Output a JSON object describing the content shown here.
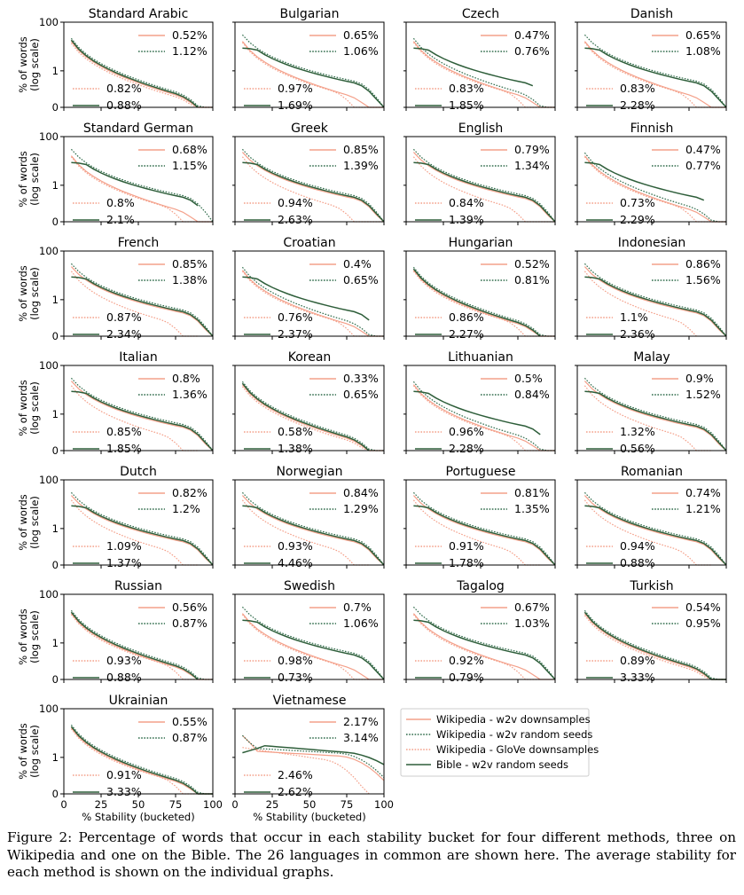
{
  "chart_data": {
    "type": "line",
    "layout": "small multiples, 7 rows by 4 columns",
    "xlabel": "% Stability (bucketed)",
    "ylabel": "% of words (log scale)",
    "x_ticks": [
      "0",
      "25",
      "50",
      "75",
      "100"
    ],
    "y_ticks": [
      "100",
      "1",
      "0"
    ],
    "xlim": [
      0,
      100
    ],
    "ylim_log10": [
      -1.5,
      2
    ],
    "series_styles": [
      {
        "name": "Wikipedia - w2v downsamples",
        "color": "#f4a08a",
        "style": "solid"
      },
      {
        "name": "Wikipedia - w2v random seeds",
        "color": "#2f6b4a",
        "style": "dotted"
      },
      {
        "name": "Wikipedia - GloVe downsamples",
        "color": "#f4a08a",
        "style": "dotted"
      },
      {
        "name": "Bible - w2v random seeds",
        "color": "#2e5e3a",
        "style": "solid"
      }
    ],
    "legend_location": "bottom-right empty grid cells",
    "panels": [
      {
        "title": "Standard Arabic",
        "avg": [
          "0.52%",
          "1.12%",
          "0.82%",
          "0.88%"
        ],
        "shape": [
          "concave",
          "concave",
          "concave",
          "concave"
        ],
        "xend": [
          100,
          100,
          100,
          94
        ]
      },
      {
        "title": "Bulgarian",
        "avg": [
          "0.65%",
          "1.06%",
          "0.97%",
          "1.69%"
        ],
        "shape": [
          "concave",
          "flat",
          "convex",
          "flat"
        ],
        "xend": [
          100,
          100,
          100,
          100
        ]
      },
      {
        "title": "Czech",
        "avg": [
          "0.47%",
          "0.76%",
          "0.83%",
          "1.85%"
        ],
        "shape": [
          "concave",
          "concave",
          "convex",
          "flat"
        ],
        "xend": [
          100,
          100,
          100,
          88
        ]
      },
      {
        "title": "Danish",
        "avg": [
          "0.65%",
          "1.08%",
          "0.83%",
          "2.28%"
        ],
        "shape": [
          "concave",
          "flat",
          "convex",
          "flat"
        ],
        "xend": [
          100,
          100,
          100,
          100
        ]
      },
      {
        "title": "Standard German",
        "avg": [
          "0.68%",
          "1.15%",
          "0.8%",
          "2.1%"
        ],
        "shape": [
          "concave",
          "flat",
          "convex",
          "flat"
        ],
        "xend": [
          100,
          100,
          100,
          94
        ]
      },
      {
        "title": "Greek",
        "avg": [
          "0.85%",
          "1.39%",
          "0.94%",
          "2.63%"
        ],
        "shape": [
          "flat",
          "flat",
          "convex",
          "flat"
        ],
        "xend": [
          100,
          100,
          100,
          100
        ]
      },
      {
        "title": "English",
        "avg": [
          "0.79%",
          "1.34%",
          "0.84%",
          "1.39%"
        ],
        "shape": [
          "flat",
          "flat",
          "convex",
          "flat"
        ],
        "xend": [
          100,
          100,
          100,
          100
        ]
      },
      {
        "title": "Finnish",
        "avg": [
          "0.47%",
          "0.77%",
          "0.73%",
          "2.29%"
        ],
        "shape": [
          "concave",
          "concave",
          "convex",
          "flat"
        ],
        "xend": [
          100,
          100,
          100,
          88
        ]
      },
      {
        "title": "French",
        "avg": [
          "0.85%",
          "1.38%",
          "0.87%",
          "2.34%"
        ],
        "shape": [
          "flat",
          "flat",
          "convex",
          "flat"
        ],
        "xend": [
          100,
          100,
          92,
          100
        ]
      },
      {
        "title": "Croatian",
        "avg": [
          "0.4%",
          "0.65%",
          "0.76%",
          "2.37%"
        ],
        "shape": [
          "concave",
          "concave",
          "convex",
          "flat"
        ],
        "xend": [
          100,
          100,
          100,
          94
        ]
      },
      {
        "title": "Hungarian",
        "avg": [
          "0.52%",
          "0.81%",
          "0.86%",
          "2.27%"
        ],
        "shape": [
          "concave",
          "concave",
          "convex",
          "concave"
        ],
        "xend": [
          100,
          100,
          100,
          90
        ]
      },
      {
        "title": "Indonesian",
        "avg": [
          "0.86%",
          "1.56%",
          "1.1%",
          "2.36%"
        ],
        "shape": [
          "flat",
          "flat",
          "convex",
          "flat"
        ],
        "xend": [
          100,
          100,
          82,
          100
        ]
      },
      {
        "title": "Italian",
        "avg": [
          "0.8%",
          "1.36%",
          "0.85%",
          "1.85%"
        ],
        "shape": [
          "flat",
          "flat",
          "convex",
          "flat"
        ],
        "xend": [
          100,
          100,
          92,
          100
        ]
      },
      {
        "title": "Korean",
        "avg": [
          "0.33%",
          "0.65%",
          "0.58%",
          "1.38%"
        ],
        "shape": [
          "concave",
          "concave",
          "concave",
          "concave"
        ],
        "xend": [
          100,
          100,
          100,
          90
        ]
      },
      {
        "title": "Lithuanian",
        "avg": [
          "0.5%",
          "0.84%",
          "0.96%",
          "2.28%"
        ],
        "shape": [
          "concave",
          "concave",
          "convex",
          "flat"
        ],
        "xend": [
          100,
          100,
          100,
          94
        ]
      },
      {
        "title": "Malay",
        "avg": [
          "0.9%",
          "1.52%",
          "1.32%",
          "0.56%"
        ],
        "shape": [
          "flat",
          "flat",
          "convex",
          "flat"
        ],
        "xend": [
          100,
          100,
          92,
          100
        ]
      },
      {
        "title": "Dutch",
        "avg": [
          "0.82%",
          "1.2%",
          "1.09%",
          "1.37%"
        ],
        "shape": [
          "flat",
          "flat",
          "convex",
          "flat"
        ],
        "xend": [
          100,
          100,
          92,
          100
        ]
      },
      {
        "title": "Norwegian",
        "avg": [
          "0.84%",
          "1.29%",
          "0.93%",
          "4.46%"
        ],
        "shape": [
          "flat",
          "flat",
          "convex",
          "flat"
        ],
        "xend": [
          100,
          100,
          92,
          100
        ]
      },
      {
        "title": "Portuguese",
        "avg": [
          "0.81%",
          "1.35%",
          "0.91%",
          "1.78%"
        ],
        "shape": [
          "flat",
          "flat",
          "convex",
          "flat"
        ],
        "xend": [
          100,
          100,
          92,
          100
        ]
      },
      {
        "title": "Romanian",
        "avg": [
          "0.74%",
          "1.21%",
          "0.94%",
          "0.88%"
        ],
        "shape": [
          "flat",
          "flat",
          "convex",
          "flat"
        ],
        "xend": [
          100,
          100,
          92,
          100
        ]
      },
      {
        "title": "Russian",
        "avg": [
          "0.56%",
          "0.87%",
          "0.93%",
          "0.88%"
        ],
        "shape": [
          "concave",
          "concave",
          "convex",
          "concave"
        ],
        "xend": [
          100,
          100,
          100,
          94
        ]
      },
      {
        "title": "Swedish",
        "avg": [
          "0.7%",
          "1.06%",
          "0.98%",
          "0.73%"
        ],
        "shape": [
          "concave",
          "flat",
          "convex",
          "flat"
        ],
        "xend": [
          100,
          100,
          92,
          100
        ]
      },
      {
        "title": "Tagalog",
        "avg": [
          "0.67%",
          "1.03%",
          "0.92%",
          "0.79%"
        ],
        "shape": [
          "concave",
          "flat",
          "convex",
          "flat"
        ],
        "xend": [
          100,
          100,
          92,
          100
        ]
      },
      {
        "title": "Turkish",
        "avg": [
          "0.54%",
          "0.95%",
          "0.89%",
          "3.33%"
        ],
        "shape": [
          "concave",
          "concave",
          "concave",
          "concave"
        ],
        "xend": [
          100,
          100,
          100,
          100
        ]
      },
      {
        "title": "Ukrainian",
        "avg": [
          "0.55%",
          "0.87%",
          "0.91%",
          "3.33%"
        ],
        "shape": [
          "concave",
          "concave",
          "convex",
          "concave"
        ],
        "xend": [
          100,
          100,
          100,
          100
        ]
      },
      {
        "title": "Vietnamese",
        "avg": [
          "2.17%",
          "3.14%",
          "2.46%",
          "2.62%"
        ],
        "shape": [
          "vietnamese",
          "vietnamese",
          "vietnamese",
          "vietnamese"
        ],
        "xend": [
          100,
          100,
          92,
          100
        ]
      }
    ]
  },
  "caption": "Figure 2: Percentage of words that occur in each stability bucket for four different methods, three on Wikipedia and one on the Bible. The 26 languages in common are shown here. The average stability for each method is shown on the individual graphs."
}
